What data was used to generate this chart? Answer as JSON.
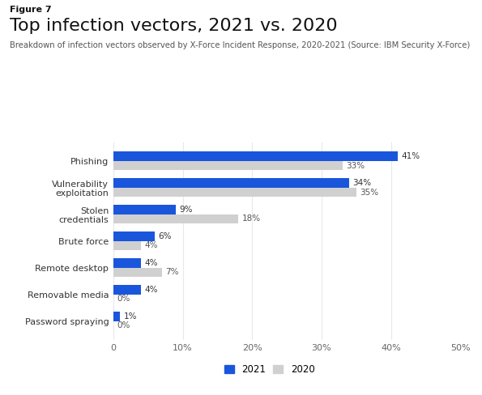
{
  "figure_label": "Figure 7",
  "title": "Top infection vectors, 2021 vs. 2020",
  "subtitle": "Breakdown of infection vectors observed by X-Force Incident Response, 2020-2021 (Source: IBM Security X-Force)",
  "categories": [
    "Password spraying",
    "Removable media",
    "Remote desktop",
    "Brute force",
    "Stolen\ncredentials",
    "Vulnerability\nexploitation",
    "Phishing"
  ],
  "values_2021": [
    1,
    4,
    4,
    6,
    9,
    34,
    41
  ],
  "values_2020": [
    0,
    0,
    7,
    4,
    18,
    35,
    33
  ],
  "labels_2021": [
    "1%",
    "4%",
    "4%",
    "6%",
    "9%",
    "34%",
    "41%"
  ],
  "labels_2020": [
    "0%",
    "0%",
    "7%",
    "4%",
    "18%",
    "35%",
    "33%"
  ],
  "color_2021": "#1a56db",
  "color_2020": "#d0d0d0",
  "xlim": [
    0,
    50
  ],
  "xticks": [
    0,
    10,
    20,
    30,
    40,
    50
  ],
  "xticklabels": [
    "0",
    "10%",
    "20%",
    "30%",
    "40%",
    "50%"
  ],
  "bar_height": 0.35,
  "legend_2021": "2021",
  "legend_2020": "2020",
  "bg_color": "#ffffff",
  "subtitle_color": "#555555",
  "label_color_2021": "#333333",
  "label_color_2020": "#555555",
  "grid_color": "#e8e8e8",
  "fig_label_fontsize": 8,
  "title_fontsize": 16,
  "subtitle_fontsize": 7.2,
  "tick_fontsize": 8,
  "label_fontsize": 7.5,
  "legend_fontsize": 8.5
}
